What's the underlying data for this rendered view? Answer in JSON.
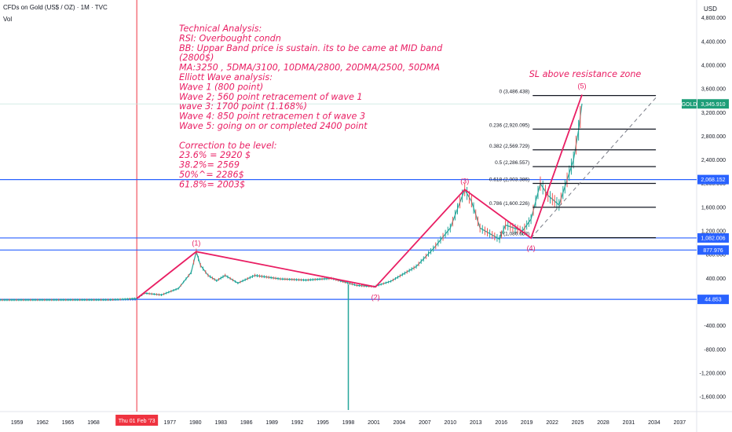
{
  "header": {
    "symbol_title": "CFDs on Gold (US$ / OZ) · 1M · TVC",
    "volume_label": "Vol",
    "currency_label": "USD"
  },
  "theme": {
    "annotation_color": "#e91e63",
    "hline_color": "#2962ff",
    "price_tag_color": "#1e9e78",
    "fib_line_color": "#131722",
    "candle_up": "#26a69a",
    "candle_down": "#ef5350",
    "crosshair_color": "#ef3340"
  },
  "chart_data": {
    "type": "line",
    "xlabel": "",
    "ylabel": "",
    "x_ticks": [
      "1959",
      "1962",
      "1965",
      "1968",
      "1977",
      "1980",
      "1983",
      "1986",
      "1989",
      "1992",
      "1995",
      "1998",
      "2001",
      "2004",
      "2007",
      "2010",
      "2013",
      "2016",
      "2019",
      "2022",
      "2025",
      "2028",
      "2031",
      "2034",
      "2037"
    ],
    "x_range": [
      1957,
      2039
    ],
    "y_ticks": [
      -1600,
      -1200,
      -800,
      -400,
      400,
      800,
      1200,
      1600,
      2000,
      2400,
      2800,
      3200,
      3600,
      4000,
      4400,
      4800
    ],
    "y_tick_labels": [
      "-1,600.000",
      "-1,200.000",
      "-800.000",
      "-400.000",
      "400.000",
      "800.000",
      "1,200.000",
      "1,600.000",
      "2,000.000",
      "2,400.000",
      "2,800.000",
      "3,200.000",
      "3,600.000",
      "4,000.000",
      "4,400.000",
      "4,800.000"
    ],
    "y_range": [
      -1850,
      5100
    ],
    "crosshair": {
      "x": 1973.1,
      "label": "Thu 01 Feb '73"
    },
    "price_series": {
      "name": "GOLD",
      "points": [
        [
          1957,
          35
        ],
        [
          1970,
          38
        ],
        [
          1972,
          50
        ],
        [
          1973.1,
          60
        ],
        [
          1974,
          150
        ],
        [
          1976,
          120
        ],
        [
          1978,
          230
        ],
        [
          1979.5,
          500
        ],
        [
          1980.1,
          850
        ],
        [
          1980.6,
          620
        ],
        [
          1981.5,
          450
        ],
        [
          1982.5,
          360
        ],
        [
          1983.5,
          450
        ],
        [
          1985,
          320
        ],
        [
          1987,
          450
        ],
        [
          1990,
          390
        ],
        [
          1993,
          370
        ],
        [
          1996,
          400
        ],
        [
          1999,
          280
        ],
        [
          2001,
          260
        ],
        [
          2003,
          350
        ],
        [
          2006,
          600
        ],
        [
          2008,
          900
        ],
        [
          2010,
          1250
        ],
        [
          2011.7,
          1900
        ],
        [
          2012.5,
          1700
        ],
        [
          2013.5,
          1250
        ],
        [
          2015.8,
          1060
        ],
        [
          2016.5,
          1300
        ],
        [
          2018.5,
          1200
        ],
        [
          2019.5,
          1400
        ],
        [
          2020.6,
          2000
        ],
        [
          2021.5,
          1800
        ],
        [
          2022.8,
          1640
        ],
        [
          2023.5,
          1950
        ],
        [
          2024.5,
          2400
        ],
        [
          2025.1,
          2900
        ],
        [
          2025.5,
          3350
        ]
      ]
    },
    "horizontal_lines": [
      {
        "value": 2068.152,
        "label": "2,068.152"
      },
      {
        "value": 1082.006,
        "label": "1,082.006"
      },
      {
        "value": 877.976,
        "label": "877.976"
      },
      {
        "value": 44.853,
        "label": "44.853"
      }
    ],
    "current_price": {
      "name": "GOLD",
      "value": 3345.91,
      "label": "3,345.910"
    },
    "fib_levels": [
      {
        "ratio": "0",
        "value": 3486.438,
        "label": "0 (3,486.438)"
      },
      {
        "ratio": "0.236",
        "value": 2920.095,
        "label": "0.236 (2,920.095)"
      },
      {
        "ratio": "0.382",
        "value": 2569.729,
        "label": "0.382 (2,569.729)"
      },
      {
        "ratio": "0.5",
        "value": 2286.557,
        "label": "0.5 (2,286.557)"
      },
      {
        "ratio": "0.618",
        "value": 2003.386,
        "label": "0.618 (2,003.386)"
      },
      {
        "ratio": "0.786",
        "value": 1600.226,
        "label": "0.786 (1,600.226)"
      },
      {
        "ratio": "1",
        "value": 1086.658,
        "label": "1 (1,086.658)"
      }
    ],
    "fib_x_range": [
      2019.7,
      2034.2
    ],
    "elliott_waves": [
      {
        "label": "",
        "x": 1973.1,
        "y": 60
      },
      {
        "label": "(1)",
        "x": 1980.1,
        "y": 850
      },
      {
        "label": "(2)",
        "x": 2001.2,
        "y": 255
      },
      {
        "label": "(3)",
        "x": 2011.7,
        "y": 1900
      },
      {
        "label": "(4)",
        "x": 2019.5,
        "y": 1080
      },
      {
        "label": "(5)",
        "x": 2025.5,
        "y": 3500
      }
    ],
    "trend_line": {
      "from": [
        2019.5,
        1080
      ],
      "to": [
        2034.2,
        3450
      ]
    },
    "annotations": [
      "Technical Analysis:",
      "RSI: Overbought condn",
      "BB: Uppar Band price is sustain. its to be came at MID band",
      "(2800$)",
      "MA:3250 , 5DMA/3100, 10DMA/2800, 20DMA/2500, 50DMA",
      "Elliott Wave analysis:",
      "Wave 1 (800 point)",
      "Wave 2; 560 point retracement of wave 1",
      "wave 3: 1700 point (1.168%)",
      "Wave 4: 850 point retracemen t of wave 3",
      "Wave 5: going on or completed 2400 point",
      "",
      "Correction to be level:",
      "23.6% = 2920 $",
      "38.2%= 2569",
      "50%^= 2286$",
      "61.8%= 2003$"
    ],
    "sl_note": "SL above resistance zone"
  }
}
